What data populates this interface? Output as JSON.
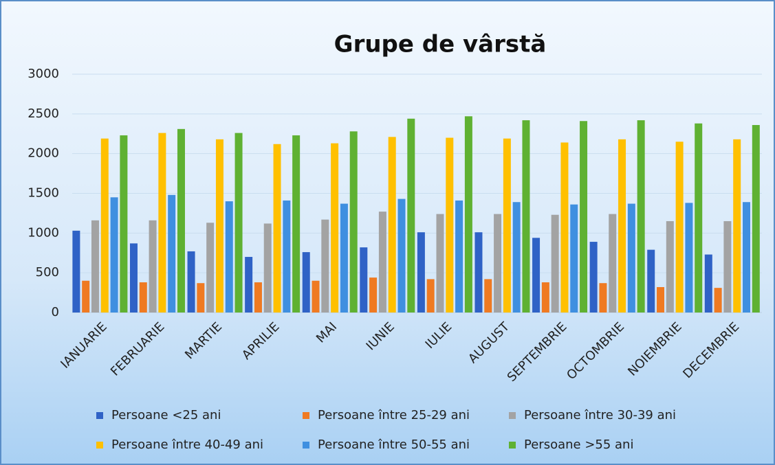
{
  "chart_data": {
    "type": "bar",
    "title": "Grupe de vârstă",
    "categories": [
      "IANUARIE",
      "FEBRUARIE",
      "MARTIE",
      "APRILIE",
      "MAI",
      "IUNIE",
      "IULIE",
      "AUGUST",
      "SEPTEMBRIE",
      "OCTOMBRIE",
      "NOIEMBRIE",
      "DECEMBRIE"
    ],
    "series": [
      {
        "name": "Persoane <25 ani",
        "color": "#2f62c6",
        "values": [
          1030,
          870,
          770,
          700,
          760,
          820,
          1010,
          1010,
          940,
          890,
          790,
          730
        ]
      },
      {
        "name": "Persoane între 25-29 ani",
        "color": "#ef7a22",
        "values": [
          400,
          380,
          370,
          380,
          400,
          440,
          420,
          420,
          380,
          370,
          320,
          310
        ]
      },
      {
        "name": "Persoane între 30-39 ani",
        "color": "#a3a3a3",
        "values": [
          1160,
          1160,
          1130,
          1120,
          1170,
          1270,
          1240,
          1240,
          1230,
          1240,
          1150,
          1150
        ]
      },
      {
        "name": "Persoane între 40-49 ani",
        "color": "#ffc000",
        "values": [
          2190,
          2260,
          2180,
          2120,
          2130,
          2210,
          2200,
          2190,
          2140,
          2180,
          2150,
          2180
        ]
      },
      {
        "name": "Persoane între 50-55 ani",
        "color": "#3f8fe0",
        "values": [
          1450,
          1480,
          1400,
          1410,
          1370,
          1430,
          1410,
          1390,
          1360,
          1370,
          1380,
          1390
        ]
      },
      {
        "name": "Persoane >55 ani",
        "color": "#5fb132",
        "values": [
          2230,
          2310,
          2260,
          2230,
          2280,
          2440,
          2470,
          2420,
          2410,
          2420,
          2380,
          2360
        ]
      }
    ],
    "ylim": [
      0,
      3000
    ],
    "yticks": [
      0,
      500,
      1000,
      1500,
      2000,
      2500,
      3000
    ],
    "grid": true,
    "legend": "bottom"
  }
}
